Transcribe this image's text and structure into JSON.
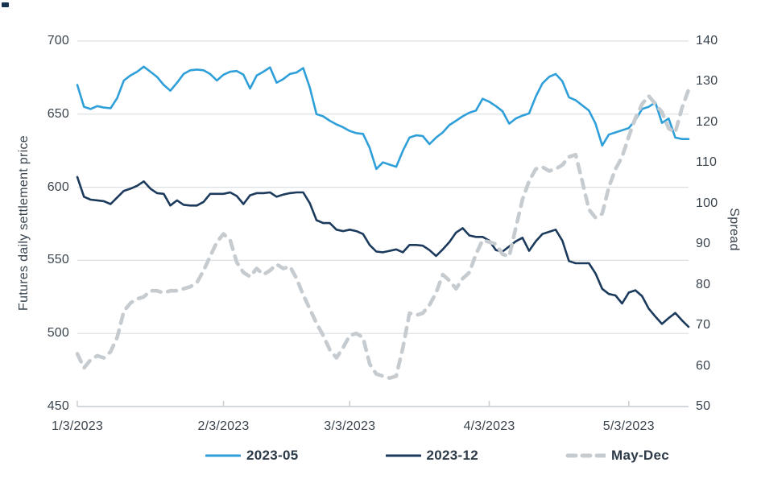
{
  "chart_data": {
    "type": "line",
    "title": "",
    "left_axis": {
      "label": "Futures daily settlement price",
      "min": 450,
      "max": 700,
      "ticks": [
        700,
        650,
        600,
        550,
        500,
        450
      ]
    },
    "right_axis": {
      "label": "Spread",
      "min": 50,
      "max": 140,
      "ticks": [
        140,
        130,
        120,
        110,
        100,
        90,
        80,
        70,
        60,
        50
      ]
    },
    "x_axis": {
      "tick_labels": [
        "1/3/2023",
        "2/3/2023",
        "3/3/2023",
        "4/3/2023",
        "5/3/2023"
      ],
      "tick_indices": [
        0,
        22,
        41,
        62,
        83
      ]
    },
    "grid": "horizontal",
    "grid_color": "#dcdfe2",
    "axis_line_color": "#c7ccd1",
    "text_color": "#3a444e",
    "dates": [
      "1/3",
      "1/4",
      "1/5",
      "1/6",
      "1/9",
      "1/10",
      "1/11",
      "1/12",
      "1/13",
      "1/17",
      "1/18",
      "1/19",
      "1/20",
      "1/23",
      "1/24",
      "1/25",
      "1/26",
      "1/27",
      "1/30",
      "1/31",
      "2/1",
      "2/2",
      "2/3",
      "2/6",
      "2/7",
      "2/8",
      "2/9",
      "2/10",
      "2/13",
      "2/14",
      "2/15",
      "2/16",
      "2/17",
      "2/21",
      "2/22",
      "2/23",
      "2/24",
      "2/27",
      "2/28",
      "3/1",
      "3/2",
      "3/3",
      "3/6",
      "3/7",
      "3/8",
      "3/9",
      "3/10",
      "3/13",
      "3/14",
      "3/15",
      "3/16",
      "3/17",
      "3/20",
      "3/21",
      "3/22",
      "3/23",
      "3/24",
      "3/27",
      "3/28",
      "3/29",
      "3/30",
      "3/31",
      "4/3",
      "4/4",
      "4/5",
      "4/6",
      "4/10",
      "4/11",
      "4/12",
      "4/13",
      "4/14",
      "4/17",
      "4/18",
      "4/19",
      "4/20",
      "4/21",
      "4/24",
      "4/25",
      "4/26",
      "4/27",
      "4/28",
      "5/1",
      "5/2",
      "5/3",
      "5/4",
      "5/5",
      "5/8",
      "5/9",
      "5/10",
      "5/11",
      "5/12",
      "5/15",
      "5/16"
    ],
    "series": [
      {
        "name": "2023-05",
        "axis": "left",
        "color": "#2f9fd9",
        "style": "solid",
        "values": [
          670,
          655,
          653.5,
          655.5,
          654.5,
          654,
          661,
          673,
          676.5,
          679,
          682.5,
          679,
          675.5,
          670,
          666,
          671.5,
          677.5,
          680,
          680.5,
          680,
          677.5,
          673,
          677,
          679,
          679.5,
          677,
          667.5,
          676.5,
          679,
          682,
          671.5,
          674,
          677.5,
          678.5,
          681.5,
          668,
          650,
          648.5,
          645.5,
          643,
          641,
          638.5,
          637,
          636.5,
          627,
          612.5,
          617,
          615.5,
          614,
          625,
          634,
          635.5,
          635,
          629.5,
          634,
          637.5,
          642.5,
          645.5,
          648.5,
          651,
          652.5,
          660.5,
          658.5,
          655.5,
          652,
          643.5,
          647,
          649,
          650.5,
          662,
          671,
          675.5,
          677.5,
          672.5,
          661.5,
          659.5,
          656,
          652.5,
          643.5,
          628.5,
          636,
          637.5,
          639,
          640.5,
          646,
          653.5,
          655,
          658,
          644,
          647,
          634,
          633,
          633
        ]
      },
      {
        "name": "2023-12",
        "axis": "left",
        "color": "#1b3a5c",
        "style": "solid",
        "values": [
          607,
          593.5,
          591.5,
          591,
          590.5,
          588.5,
          593,
          597.5,
          599,
          601,
          604,
          599,
          596,
          595.5,
          587.5,
          591,
          588,
          587.5,
          587.5,
          590,
          595.5,
          595.5,
          595.5,
          596.5,
          594,
          588.5,
          594.5,
          596,
          596,
          596.5,
          593.5,
          595,
          596,
          596.5,
          596.5,
          589,
          577.5,
          575.5,
          575.5,
          571,
          570,
          571,
          570,
          568,
          560.5,
          556,
          555.5,
          556.5,
          557.5,
          555.5,
          560.5,
          560.5,
          560,
          557,
          553,
          557.5,
          562.5,
          569,
          572,
          567,
          566,
          566,
          563.5,
          557,
          556,
          559.5,
          563,
          565.5,
          556.5,
          563,
          568,
          569.5,
          571,
          563.5,
          549.5,
          548,
          548,
          548,
          541,
          530.5,
          527,
          526,
          520.5,
          528,
          529.5,
          525.5,
          517,
          511.5,
          506.5,
          510.5,
          514,
          509,
          504.5
        ]
      },
      {
        "name": "May-Dec",
        "axis": "right",
        "color": "#c6cbd0",
        "style": "dashed",
        "values": [
          63,
          59.5,
          61.5,
          62.5,
          62,
          63.5,
          67,
          73.5,
          75.5,
          76.5,
          77,
          78.5,
          78.5,
          78,
          78.5,
          78.5,
          79,
          79.5,
          80.5,
          83.5,
          87,
          90.5,
          92.5,
          91,
          85.5,
          83,
          82,
          84,
          82.5,
          83.5,
          85,
          84,
          84.5,
          81.5,
          77.5,
          74,
          70.5,
          67.5,
          64,
          62,
          64.5,
          67.5,
          68,
          67,
          60.5,
          58,
          57.5,
          57,
          57.5,
          64.5,
          73,
          72.5,
          73,
          75,
          78,
          82.5,
          81,
          79,
          81.5,
          83,
          87.5,
          91,
          90.5,
          90,
          87.5,
          87,
          94,
          101,
          105.5,
          108.5,
          109,
          108,
          108.5,
          109.5,
          111.5,
          112,
          105.5,
          98.5,
          96.5,
          97.5,
          104,
          108.5,
          111.5,
          116.5,
          121,
          124.5,
          126.5,
          124.5,
          122.5,
          118.5,
          117.5,
          123.5,
          128
        ]
      }
    ],
    "legend": {
      "position": "bottom",
      "items": [
        "2023-05",
        "2023-12",
        "May-Dec"
      ]
    }
  }
}
